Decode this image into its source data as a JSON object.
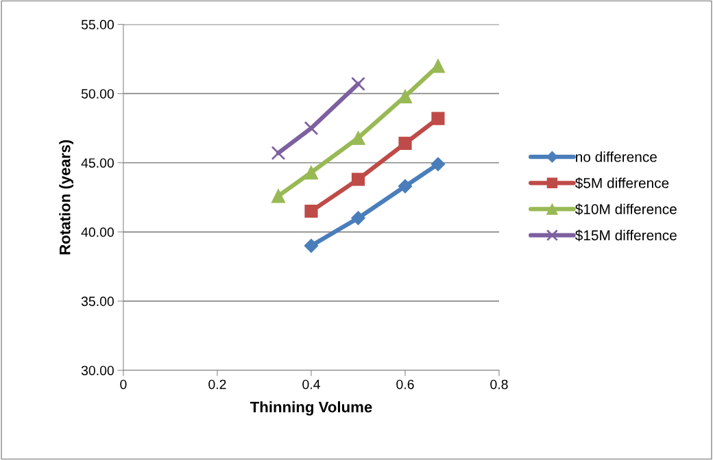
{
  "chart_data": {
    "type": "line",
    "xlabel": "Thinning Volume",
    "ylabel": "Rotation (years)",
    "xlim": [
      0,
      0.8
    ],
    "xticks": [
      0,
      0.2,
      0.4,
      0.6,
      0.8
    ],
    "ylim": [
      30,
      55
    ],
    "yticks": [
      {
        "value": 30,
        "label": "30.00"
      },
      {
        "value": 35,
        "label": "35.00"
      },
      {
        "value": 40,
        "label": "40.00"
      },
      {
        "value": 45,
        "label": "45.00"
      },
      {
        "value": 50,
        "label": "50.00"
      },
      {
        "value": 55,
        "label": "55.00"
      }
    ],
    "grid": "y",
    "legend": "right",
    "line_style": "solid",
    "series": [
      {
        "name": "no difference",
        "color": "#4a7ebb",
        "marker": "diamond",
        "x": [
          0.4,
          0.5,
          0.6,
          0.67
        ],
        "values": [
          39.0,
          41.0,
          43.3,
          44.9
        ]
      },
      {
        "name": "$5M difference",
        "color": "#be4b48",
        "marker": "square",
        "x": [
          0.4,
          0.5,
          0.6,
          0.67
        ],
        "values": [
          41.5,
          43.8,
          46.4,
          48.2
        ]
      },
      {
        "name": "$10M difference",
        "color": "#98b954",
        "marker": "triangle",
        "x": [
          0.33,
          0.4,
          0.5,
          0.6,
          0.67
        ],
        "values": [
          42.6,
          44.3,
          46.8,
          49.8,
          52.0
        ]
      },
      {
        "name": "$15M difference",
        "color": "#7d60a0",
        "marker": "cross",
        "x": [
          0.33,
          0.4,
          0.5
        ],
        "values": [
          45.7,
          47.5,
          50.7
        ]
      }
    ]
  }
}
